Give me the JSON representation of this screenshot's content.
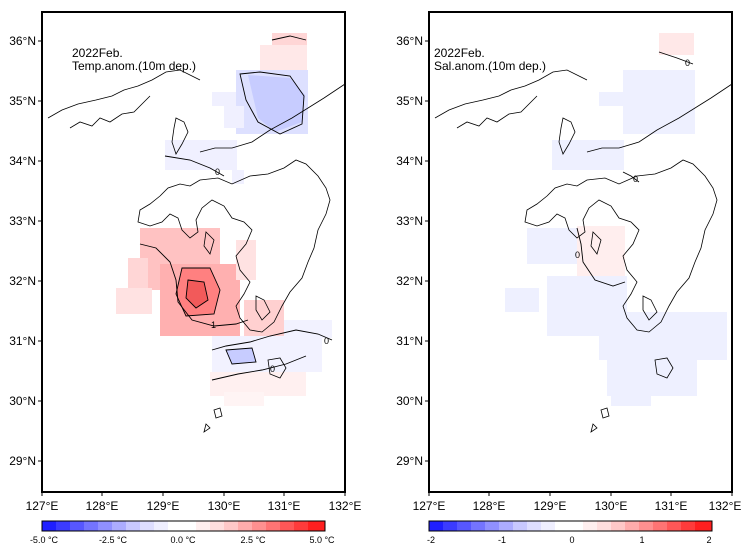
{
  "maps": [
    {
      "title": "2022Feb.",
      "subtitle": "Temp.anom.(10m dep.)",
      "lat_labels": [
        "36°N",
        "35°N",
        "34°N",
        "33°N",
        "32°N",
        "31°N",
        "30°N",
        "29°N"
      ],
      "lon_labels": [
        "127°E",
        "128°E",
        "129°E",
        "130°E",
        "131°E",
        "132°E"
      ],
      "colorbar_labels": [
        "-5.0 °C",
        "-2.5 °C",
        "0.0 °C",
        "2.5 °C",
        "5.0 °C"
      ],
      "contour_labels": [
        "0",
        "1",
        "0",
        "0"
      ]
    },
    {
      "title": "2022Feb.",
      "subtitle": "Sal.anom.(10m dep.)",
      "lat_labels": [
        "36°N",
        "35°N",
        "34°N",
        "33°N",
        "32°N",
        "31°N",
        "30°N",
        "29°N"
      ],
      "lon_labels": [
        "127°E",
        "128°E",
        "129°E",
        "130°E",
        "131°E",
        "132°E"
      ],
      "colorbar_labels": [
        "-2",
        "-1",
        "0",
        "1",
        "2"
      ],
      "contour_labels": [
        "0",
        "0",
        "0"
      ]
    }
  ],
  "colors": {
    "deep_blue": "#1f1fff",
    "light_blue": "#dde0ff",
    "white": "#ffffff",
    "light_red": "#ffd6d6",
    "deep_red": "#ff1f1f"
  }
}
